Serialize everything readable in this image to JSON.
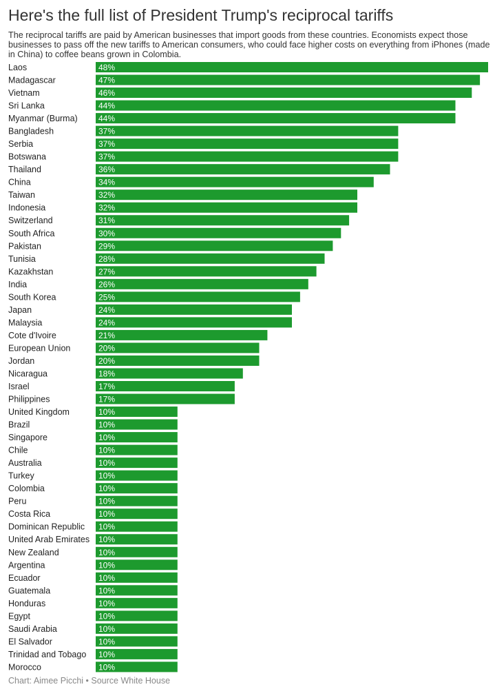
{
  "chart_data": {
    "type": "bar",
    "orientation": "horizontal",
    "title": "Here's the full list of President Trump's reciprocal tariffs",
    "subtitle": "The reciprocal tariffs are paid by American businesses that import goods from these countries. Economists expect those businesses to pass off the new tariffs to American consumers, who could face higher costs on everything from iPhones (made in China) to coffee beans grown in Colombia.",
    "categories": [
      "Laos",
      "Madagascar",
      "Vietnam",
      "Sri Lanka",
      "Myanmar (Burma)",
      "Bangladesh",
      "Serbia",
      "Botswana",
      "Thailand",
      "China",
      "Taiwan",
      "Indonesia",
      "Switzerland",
      "South Africa",
      "Pakistan",
      "Tunisia",
      "Kazakhstan",
      "India",
      "South Korea",
      "Japan",
      "Malaysia",
      "Cote d'Ivoire",
      "European Union",
      "Jordan",
      "Nicaragua",
      "Israel",
      "Philippines",
      "United Kingdom",
      "Brazil",
      "Singapore",
      "Chile",
      "Australia",
      "Turkey",
      "Colombia",
      "Peru",
      "Costa Rica",
      "Dominican Republic",
      "United Arab Emirates",
      "New Zealand",
      "Argentina",
      "Ecuador",
      "Guatemala",
      "Honduras",
      "Egypt",
      "Saudi Arabia",
      "El Salvador",
      "Trinidad and Tobago",
      "Morocco"
    ],
    "values": [
      48,
      47,
      46,
      44,
      44,
      37,
      37,
      37,
      36,
      34,
      32,
      32,
      31,
      30,
      29,
      28,
      27,
      26,
      25,
      24,
      24,
      21,
      20,
      20,
      18,
      17,
      17,
      10,
      10,
      10,
      10,
      10,
      10,
      10,
      10,
      10,
      10,
      10,
      10,
      10,
      10,
      10,
      10,
      10,
      10,
      10,
      10,
      10
    ],
    "value_suffix": "%",
    "xlim": [
      0,
      48
    ],
    "xlabel": "",
    "ylabel": "",
    "bar_color": "#1d9a2e",
    "footer": "Chart: Aimee Picchi • Source White House"
  }
}
